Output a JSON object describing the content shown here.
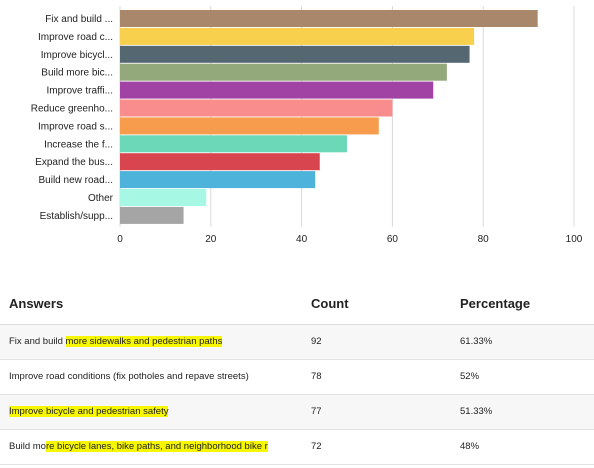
{
  "chart_data": {
    "type": "bar",
    "orientation": "horizontal",
    "categories": [
      "Fix and build ...",
      "Improve road c...",
      "Improve bicycl...",
      "Build more bic...",
      "Improve traffi...",
      "Reduce greenho...",
      "Improve road s...",
      "Increase the f...",
      "Expand the bus...",
      "Build new road...",
      "Other",
      "Establish/supp..."
    ],
    "values": [
      92,
      78,
      77,
      72,
      69,
      60,
      57,
      50,
      44,
      43,
      19,
      14
    ],
    "colors": [
      "#a9876a",
      "#f9d04e",
      "#556872",
      "#93a87b",
      "#a142a5",
      "#f98d8d",
      "#f79b4c",
      "#6dd8b8",
      "#d9454e",
      "#4eb3db",
      "#a6f7e4",
      "#a5a5a5"
    ],
    "xticks": [
      0,
      20,
      40,
      60,
      80,
      100
    ],
    "xlim": [
      0,
      100
    ],
    "grid": true
  },
  "table": {
    "headers": {
      "answers": "Answers",
      "count": "Count",
      "percentage": "Percentage"
    },
    "rows": [
      {
        "answer_plain": "Fix and build ",
        "answer_highlight": "more sidewalks and pedestrian paths",
        "count": "92",
        "percentage": "61.33%"
      },
      {
        "answer_plain": "Improve road conditions (fix potholes and repave streets)",
        "answer_highlight": "",
        "count": "78",
        "percentage": "52%"
      },
      {
        "answer_plain": "",
        "answer_highlight": "Improve bicycle and pedestrian safety",
        "count": "77",
        "percentage": "51.33%"
      },
      {
        "answer_plain": "Build mo",
        "answer_highlight": "re bicycle lanes, bike paths, and neighborhood bike r",
        "count": "72",
        "percentage": "48%"
      }
    ]
  },
  "colors": {
    "highlight": "#f7f700"
  }
}
